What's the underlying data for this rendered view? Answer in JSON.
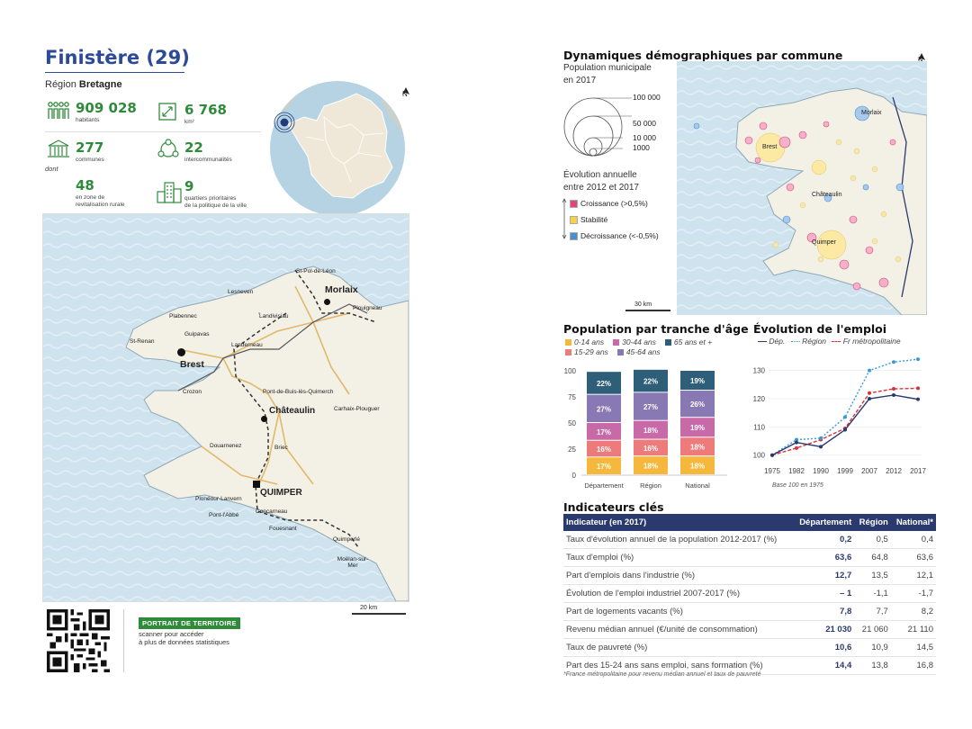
{
  "header": {
    "title": "Finistère (29)",
    "region_prefix": "Région",
    "region_name": "Bretagne"
  },
  "stats": {
    "population": {
      "value": "909 028",
      "label": "habitants"
    },
    "area": {
      "value": "6 768",
      "label": "km²"
    },
    "communes": {
      "value": "277",
      "label": "communes"
    },
    "interco": {
      "value": "22",
      "label": "intercommunalités"
    },
    "dont": "dont",
    "zrr": {
      "value": "48",
      "label1": "en zone de",
      "label2": "revitalisation rurale"
    },
    "qpv": {
      "value": "9",
      "label1": "quartiers prioritaires",
      "label2": "de la politique de la ville"
    }
  },
  "north_label": "N",
  "main_map": {
    "scale": "20 km",
    "places": [
      {
        "name": "St-Pol-de-Léon",
        "bold": false
      },
      {
        "name": "Morlaix",
        "bold": true
      },
      {
        "name": "Lesneven",
        "bold": false
      },
      {
        "name": "Landivisiau",
        "bold": false
      },
      {
        "name": "Plabennec",
        "bold": false
      },
      {
        "name": "Guipavas",
        "bold": false
      },
      {
        "name": "Landerneau",
        "bold": false
      },
      {
        "name": "St-Renan",
        "bold": false
      },
      {
        "name": "Brest",
        "bold": true
      },
      {
        "name": "Crozon",
        "bold": false
      },
      {
        "name": "Pont-de-Buis-lès-Quimerch",
        "bold": false
      },
      {
        "name": "Châteaulin",
        "bold": true
      },
      {
        "name": "Carhaix-Plouguer",
        "bold": false
      },
      {
        "name": "Douarnenez",
        "bold": false
      },
      {
        "name": "Briec",
        "bold": false
      },
      {
        "name": "QUIMPER",
        "bold": true
      },
      {
        "name": "Plonéour-Lanvern",
        "bold": false
      },
      {
        "name": "Pont-l'Abbé",
        "bold": false
      },
      {
        "name": "Concarneau",
        "bold": false
      },
      {
        "name": "Fouesnant",
        "bold": false
      },
      {
        "name": "Quimperlé",
        "bold": false
      },
      {
        "name": "Moëlan-sur-Mer",
        "bold": false
      },
      {
        "name": "Plouigneau",
        "bold": false
      }
    ]
  },
  "qr": {
    "badge": "PORTRAIT DE TERRITOIRE",
    "text1": "scanner pour accéder",
    "text2": "à plus de données statistiques"
  },
  "demo": {
    "title": "Dynamiques démographiques par commune",
    "pop_title": "Population municipale",
    "pop_year": "en 2017",
    "sizes": [
      "100 000",
      "50 000",
      "10 000",
      "1000"
    ],
    "evol_title": "Évolution annuelle",
    "evol_period": "entre 2012 et 2017",
    "evol_items": [
      {
        "label": "Croissance (>0,5%)",
        "color": "#e0457b"
      },
      {
        "label": "Stabilité",
        "color": "#f5d24a"
      },
      {
        "label": "Décroissance (<-0,5%)",
        "color": "#4a90d0"
      }
    ],
    "scale": "30 km",
    "places": [
      "Morlaix",
      "Brest",
      "Châteaulin",
      "Quimper"
    ]
  },
  "age_chart": {
    "title": "Population par tranche d'âge",
    "legend": [
      {
        "label": "0-14 ans",
        "color": "#f5b83d"
      },
      {
        "label": "30-44 ans",
        "color": "#c96aa8"
      },
      {
        "label": "65 ans et +",
        "color": "#2e5e78"
      },
      {
        "label": "15-29 ans",
        "color": "#ee7b7b"
      },
      {
        "label": "45-64 ans",
        "color": "#8878b4"
      }
    ]
  },
  "emploi_chart": {
    "title": "Évolution de l'emploi",
    "legend": [
      "Dép.",
      "Région",
      "Fr métropolitaine"
    ],
    "base_note": "Base 100 en 1975"
  },
  "chart_data": [
    {
      "type": "bar",
      "title": "Population par tranche d'âge",
      "categories": [
        "Département",
        "Région",
        "National"
      ],
      "series": [
        {
          "name": "0-14 ans",
          "values": [
            17,
            18,
            18
          ],
          "color": "#f5b83d"
        },
        {
          "name": "15-29 ans",
          "values": [
            16,
            16,
            18
          ],
          "color": "#ee7b7b"
        },
        {
          "name": "30-44 ans",
          "values": [
            17,
            18,
            19
          ],
          "color": "#c96aa8"
        },
        {
          "name": "45-64 ans",
          "values": [
            27,
            27,
            26
          ],
          "color": "#8878b4"
        },
        {
          "name": "65 ans et +",
          "values": [
            22,
            22,
            19
          ],
          "color": "#2e5e78"
        }
      ],
      "stacked": true,
      "ylim": [
        0,
        100
      ],
      "yticks": [
        0,
        25,
        50,
        75,
        100
      ]
    },
    {
      "type": "line",
      "title": "Évolution de l'emploi",
      "x": [
        "1975",
        "1982",
        "1990",
        "1999",
        "2007",
        "2012",
        "2017"
      ],
      "series": [
        {
          "name": "Dép.",
          "values": [
            100,
            104.5,
            103,
            109,
            120,
            121.3,
            119.8
          ],
          "color": "#2b3a6e",
          "dash": "solid"
        },
        {
          "name": "Région",
          "values": [
            100,
            105.5,
            106,
            113.5,
            130,
            133,
            134
          ],
          "color": "#3a9ad9",
          "dash": "dotted"
        },
        {
          "name": "Fr métropolitaine",
          "values": [
            100,
            102.5,
            105.5,
            109.5,
            122,
            123.5,
            123.7
          ],
          "color": "#d8323a",
          "dash": "dashed"
        }
      ],
      "ylim": [
        98,
        135
      ],
      "yticks": [
        100,
        110,
        120,
        130
      ]
    }
  ],
  "indicators": {
    "title": "Indicateurs clés",
    "headers": [
      "Indicateur (en 2017)",
      "Département",
      "Région",
      "National*"
    ],
    "rows": [
      [
        "Taux d'évolution annuel de la population 2012-2017 (%)",
        "0,2",
        "0,5",
        "0,4"
      ],
      [
        "Taux d'emploi (%)",
        "63,6",
        "64,8",
        "63,6"
      ],
      [
        "Part d'emplois dans l'industrie (%)",
        "12,7",
        "13,5",
        "12,1"
      ],
      [
        "Évolution de l'emploi industriel 2007-2017 (%)",
        "– 1",
        "-1,1",
        "-1,7"
      ],
      [
        "Part de logements vacants (%)",
        "7,8",
        "7,7",
        "8,2"
      ],
      [
        "Revenu médian annuel (€/unité de consommation)",
        "21 030",
        "21 060",
        "21 110"
      ],
      [
        "Taux de pauvreté (%)",
        "10,6",
        "10,9",
        "14,5"
      ],
      [
        "Part des 15-24 ans sans emploi, sans formation (%)",
        "14,4",
        "13,8",
        "16,8"
      ]
    ],
    "footnote": "*France métropolitaine pour revenu médian annuel et taux de pauvreté"
  }
}
